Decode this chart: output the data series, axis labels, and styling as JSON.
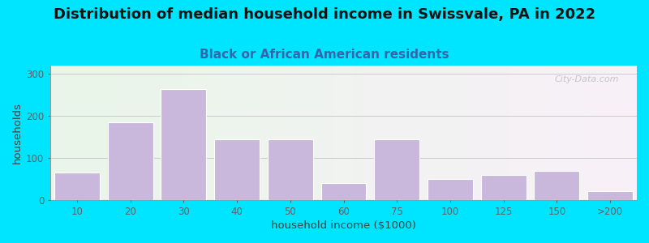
{
  "title": "Distribution of median household income in Swissvale, PA in 2022",
  "subtitle": "Black or African American residents",
  "xlabel": "household income ($1000)",
  "ylabel": "households",
  "bar_labels": [
    "10",
    "20",
    "30",
    "40",
    "50",
    "60",
    "75",
    "100",
    "125",
    "150",
    ">200"
  ],
  "bar_values": [
    65,
    185,
    265,
    145,
    145,
    40,
    145,
    50,
    60,
    70,
    22
  ],
  "bar_color": "#c9b8db",
  "bar_edge_color": "#ffffff",
  "ylim": [
    0,
    320
  ],
  "yticks": [
    0,
    100,
    200,
    300
  ],
  "bg_outer": "#00e5ff",
  "bg_left_color": "#e8f5e8",
  "bg_right_color": "#f8f0f8",
  "title_fontsize": 13,
  "subtitle_fontsize": 11,
  "subtitle_color": "#3366aa",
  "watermark": "City-Data.com"
}
